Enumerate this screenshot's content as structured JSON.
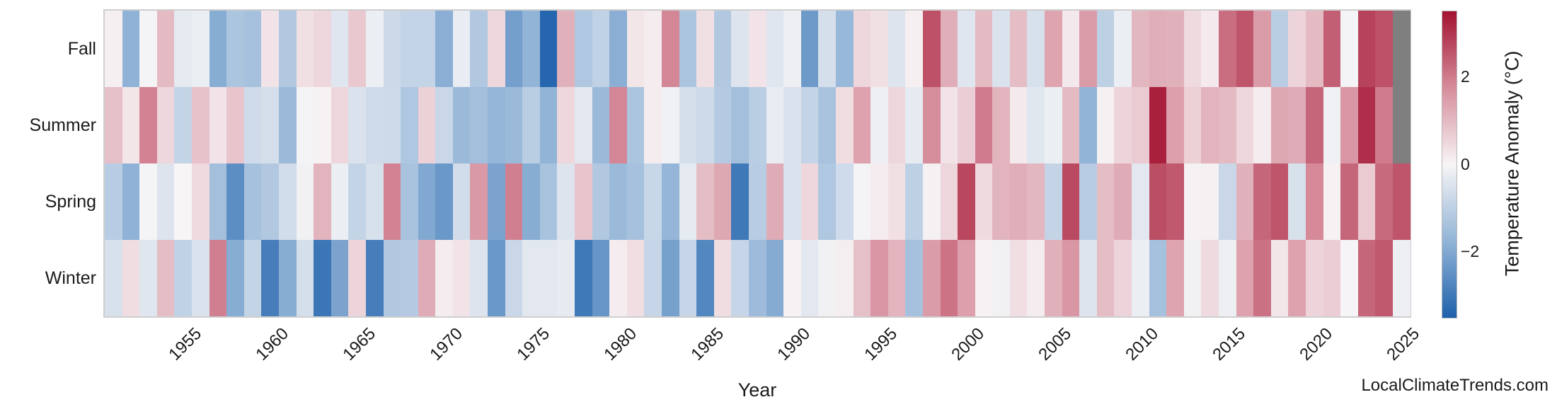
{
  "watermark": "LocalClimateTrends.com",
  "chart_data": {
    "type": "heatmap",
    "title": "",
    "xlabel": "Year",
    "ylabel": "",
    "rows": [
      "Fall",
      "Summer",
      "Spring",
      "Winter"
    ],
    "x": [
      1950,
      1951,
      1952,
      1953,
      1954,
      1955,
      1956,
      1957,
      1958,
      1959,
      1960,
      1961,
      1962,
      1963,
      1964,
      1965,
      1966,
      1967,
      1968,
      1969,
      1970,
      1971,
      1972,
      1973,
      1974,
      1975,
      1976,
      1977,
      1978,
      1979,
      1980,
      1981,
      1982,
      1983,
      1984,
      1985,
      1986,
      1987,
      1988,
      1989,
      1990,
      1991,
      1992,
      1993,
      1994,
      1995,
      1996,
      1997,
      1998,
      1999,
      2000,
      2001,
      2002,
      2003,
      2004,
      2005,
      2006,
      2007,
      2008,
      2009,
      2010,
      2011,
      2012,
      2013,
      2014,
      2015,
      2016,
      2017,
      2018,
      2019,
      2020,
      2021,
      2022,
      2023,
      2024
    ],
    "x_tick_years": [
      1955,
      1960,
      1965,
      1970,
      1975,
      1980,
      1985,
      1990,
      1995,
      2000,
      2005,
      2010,
      2015,
      2020,
      2025
    ],
    "series": [
      {
        "name": "Fall",
        "values": [
          0.1,
          -1.8,
          -0.05,
          1.0,
          -0.3,
          -0.2,
          -1.9,
          -1.3,
          -1.4,
          0.3,
          -1.2,
          0.35,
          0.5,
          -0.4,
          0.75,
          -0.2,
          -0.75,
          -0.9,
          -0.9,
          -1.85,
          -0.25,
          -1.2,
          0.5,
          -2.2,
          -1.75,
          -3.4,
          1.15,
          -1.25,
          -0.95,
          -1.85,
          0.25,
          0.15,
          1.85,
          -1.3,
          0.35,
          -1.2,
          -0.45,
          0.3,
          -0.4,
          -0.15,
          -2.3,
          -0.6,
          -1.65,
          0.5,
          0.35,
          -0.45,
          0.1,
          2.6,
          1.2,
          -0.4,
          1.0,
          -0.5,
          0.95,
          -0.55,
          1.35,
          0.2,
          1.5,
          -1.0,
          -0.2,
          1.05,
          1.2,
          1.15,
          0.45,
          0.18,
          2.2,
          2.55,
          1.5,
          -1.05,
          0.55,
          1.0,
          2.4,
          -0.05,
          2.8,
          2.6,
          null
        ]
      },
      {
        "name": "Summer",
        "values": [
          0.9,
          0.25,
          1.9,
          0.5,
          -0.9,
          0.85,
          0.3,
          0.8,
          -0.7,
          -0.6,
          -1.6,
          -0.05,
          0.05,
          0.5,
          -0.5,
          -0.7,
          -0.72,
          -1.25,
          0.6,
          -0.8,
          -1.6,
          -1.45,
          -1.7,
          -1.6,
          -1.05,
          -1.75,
          0.5,
          -0.35,
          -1.6,
          1.85,
          -1.3,
          0.15,
          -0.12,
          -0.6,
          -0.72,
          -1.15,
          -1.45,
          -1.05,
          -0.25,
          -0.5,
          -0.9,
          -1.35,
          0.4,
          1.4,
          -0.15,
          0.5,
          -0.3,
          1.75,
          0.3,
          0.65,
          2.0,
          1.1,
          0.18,
          -0.38,
          -0.2,
          1.0,
          -1.75,
          0.08,
          0.55,
          0.7,
          3.3,
          1.45,
          0.6,
          1.1,
          1.0,
          0.5,
          0.15,
          1.3,
          1.25,
          2.3,
          -0.12,
          1.6,
          3.1,
          2.0,
          null
        ]
      },
      {
        "name": "Spring",
        "values": [
          -1.1,
          -1.8,
          -0.05,
          -0.45,
          0.0,
          0.45,
          -1.45,
          -2.55,
          -1.4,
          -1.2,
          -0.65,
          -0.1,
          1.1,
          -0.2,
          -0.9,
          -0.55,
          1.9,
          -1.35,
          -2.0,
          -2.35,
          -0.65,
          1.55,
          -2.1,
          1.95,
          -1.9,
          -1.35,
          -0.45,
          0.8,
          -1.2,
          -1.6,
          -1.4,
          -0.82,
          -1.7,
          -0.3,
          0.95,
          1.3,
          -3.0,
          -1.1,
          1.25,
          -0.5,
          0.5,
          -1.25,
          -0.7,
          -0.05,
          0.15,
          0.35,
          -1.0,
          0.08,
          0.5,
          2.75,
          0.45,
          1.1,
          1.2,
          1.05,
          -0.88,
          2.7,
          -1.1,
          0.95,
          1.25,
          -0.35,
          2.65,
          2.5,
          0.05,
          0.08,
          -0.8,
          1.15,
          2.3,
          2.55,
          -0.55,
          1.8,
          0.05,
          2.3,
          0.7,
          2.25,
          2.55
        ]
      },
      {
        "name": "Winter",
        "values": [
          -0.55,
          0.4,
          -0.4,
          0.95,
          -0.95,
          -0.5,
          1.95,
          -1.9,
          -0.9,
          -2.9,
          -1.9,
          -0.6,
          -3.05,
          -2.1,
          0.55,
          -2.9,
          -1.2,
          -1.15,
          1.25,
          0.15,
          0.3,
          -0.45,
          -2.35,
          -0.8,
          -0.35,
          -0.35,
          -0.28,
          -3.0,
          -2.4,
          0.15,
          0.38,
          -0.85,
          -2.15,
          -0.85,
          -2.7,
          0.4,
          -0.85,
          -1.55,
          -1.95,
          0.05,
          -0.35,
          -0.1,
          0.12,
          0.9,
          1.6,
          1.1,
          -1.4,
          1.5,
          2.1,
          1.45,
          0.05,
          -0.1,
          0.38,
          0.15,
          1.15,
          1.6,
          -0.45,
          0.95,
          0.55,
          -0.2,
          -1.4,
          1.35,
          -0.1,
          0.45,
          -0.15,
          1.4,
          2.15,
          0.25,
          1.4,
          0.55,
          0.65,
          -0.02,
          2.3,
          2.5,
          -0.15
        ]
      }
    ],
    "value_unit": "°C",
    "vmin": -3.5,
    "vmax": 3.5,
    "missing_color": "#7f7f7f",
    "colormap": {
      "anchors": [
        {
          "v": -3.5,
          "c": "#1e61ab"
        },
        {
          "v": -1.75,
          "c": "#92b4d7"
        },
        {
          "v": 0,
          "c": "#f7f5f6"
        },
        {
          "v": 1.75,
          "c": "#d68d9c"
        },
        {
          "v": 3.5,
          "c": "#a31230"
        }
      ]
    },
    "colorbar": {
      "label": "Temperature Anomaly (°C)",
      "ticks": [
        {
          "value": 2,
          "label": "2"
        },
        {
          "value": 0,
          "label": "0"
        },
        {
          "value": -2,
          "label": "−2"
        }
      ]
    },
    "legend_position": "right-colorbar",
    "grid": false
  }
}
